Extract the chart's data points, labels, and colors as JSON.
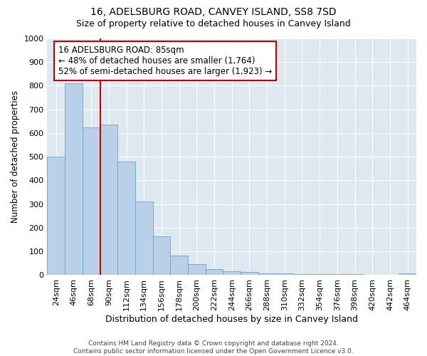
{
  "title": "16, ADELSBURG ROAD, CANVEY ISLAND, SS8 7SD",
  "subtitle": "Size of property relative to detached houses in Canvey Island",
  "xlabel": "Distribution of detached houses by size in Canvey Island",
  "ylabel": "Number of detached properties",
  "bins": [
    "24sqm",
    "46sqm",
    "68sqm",
    "90sqm",
    "112sqm",
    "134sqm",
    "156sqm",
    "178sqm",
    "200sqm",
    "222sqm",
    "244sqm",
    "266sqm",
    "288sqm",
    "310sqm",
    "332sqm",
    "354sqm",
    "376sqm",
    "398sqm",
    "420sqm",
    "442sqm",
    "464sqm"
  ],
  "values": [
    500,
    810,
    625,
    635,
    480,
    312,
    163,
    82,
    45,
    25,
    15,
    12,
    8,
    7,
    5,
    4,
    3,
    3,
    0,
    0,
    7
  ],
  "bar_color": "#b8d0e8",
  "bar_edgecolor": "#6fa0c8",
  "vline_x": 2.5,
  "annotation_line1": "16 ADELSBURG ROAD: 85sqm",
  "annotation_line2": "← 48% of detached houses are smaller (1,764)",
  "annotation_line3": "52% of semi-detached houses are larger (1,923) →",
  "annotation_box_color": "#ffffff",
  "annotation_border_color": "#cc0000",
  "ylim": [
    0,
    1000
  ],
  "yticks": [
    0,
    100,
    200,
    300,
    400,
    500,
    600,
    700,
    800,
    900,
    1000
  ],
  "bg_color": "#dde8f0",
  "footer": "Contains HM Land Registry data © Crown copyright and database right 2024.\nContains public sector information licensed under the Open Government Licence v3.0.",
  "title_fontsize": 10,
  "subtitle_fontsize": 9,
  "xlabel_fontsize": 9,
  "ylabel_fontsize": 8.5,
  "tick_fontsize": 8,
  "footer_fontsize": 6.5,
  "annot_fontsize": 8.5
}
